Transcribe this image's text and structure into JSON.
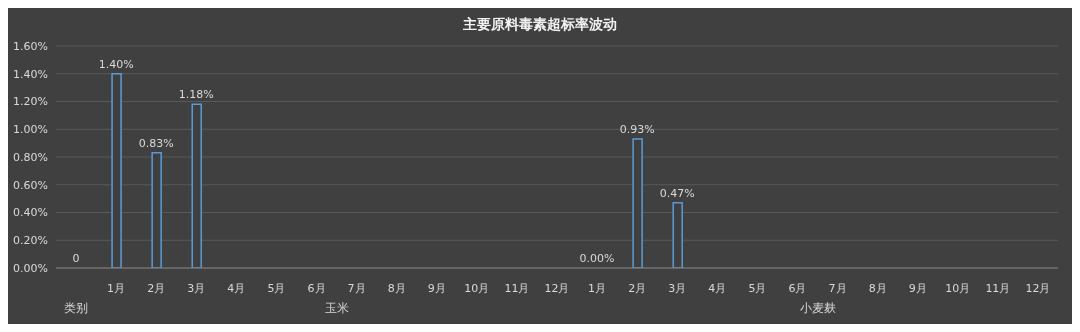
{
  "chart_data": {
    "type": "bar",
    "title": "主要原料毒素超标率波动",
    "categories": [
      null,
      "1月",
      "2月",
      "3月",
      "4月",
      "5月",
      "6月",
      "7月",
      "8月",
      "9月",
      "10月",
      "11月",
      "12月",
      "1月",
      "2月",
      "3月",
      "4月",
      "5月",
      "6月",
      "7月",
      "8月",
      "9月",
      "10月",
      "11月",
      "12月"
    ],
    "values": [
      0,
      1.4,
      0.83,
      1.18,
      null,
      null,
      null,
      null,
      null,
      null,
      null,
      null,
      null,
      0,
      0.93,
      0.47,
      null,
      null,
      null,
      null,
      null,
      null,
      null,
      null,
      null
    ],
    "value_labels": [
      "0",
      "1.40%",
      "0.83%",
      "1.18%",
      null,
      null,
      null,
      null,
      null,
      null,
      null,
      null,
      null,
      "0.00%",
      "0.93%",
      "0.47%",
      null,
      null,
      null,
      null,
      null,
      null,
      null,
      null,
      null
    ],
    "color": "#5b9bd5",
    "ylim": [
      0,
      1.6
    ],
    "yticks": [
      {
        "value": 0,
        "label": "0.00%"
      },
      {
        "value": 0.2,
        "label": "0.20%"
      },
      {
        "value": 0.4,
        "label": "0.40%"
      },
      {
        "value": 0.6,
        "label": "0.60%"
      },
      {
        "value": 0.8,
        "label": "0.80%"
      },
      {
        "value": 1.0,
        "label": "1.00%"
      },
      {
        "value": 1.2,
        "label": "1.20%"
      },
      {
        "value": 1.4,
        "label": "1.40%"
      },
      {
        "value": 1.6,
        "label": "1.60%"
      }
    ],
    "grid": "y",
    "annotations": [
      "类别",
      "玉米",
      "小麦麸"
    ]
  }
}
